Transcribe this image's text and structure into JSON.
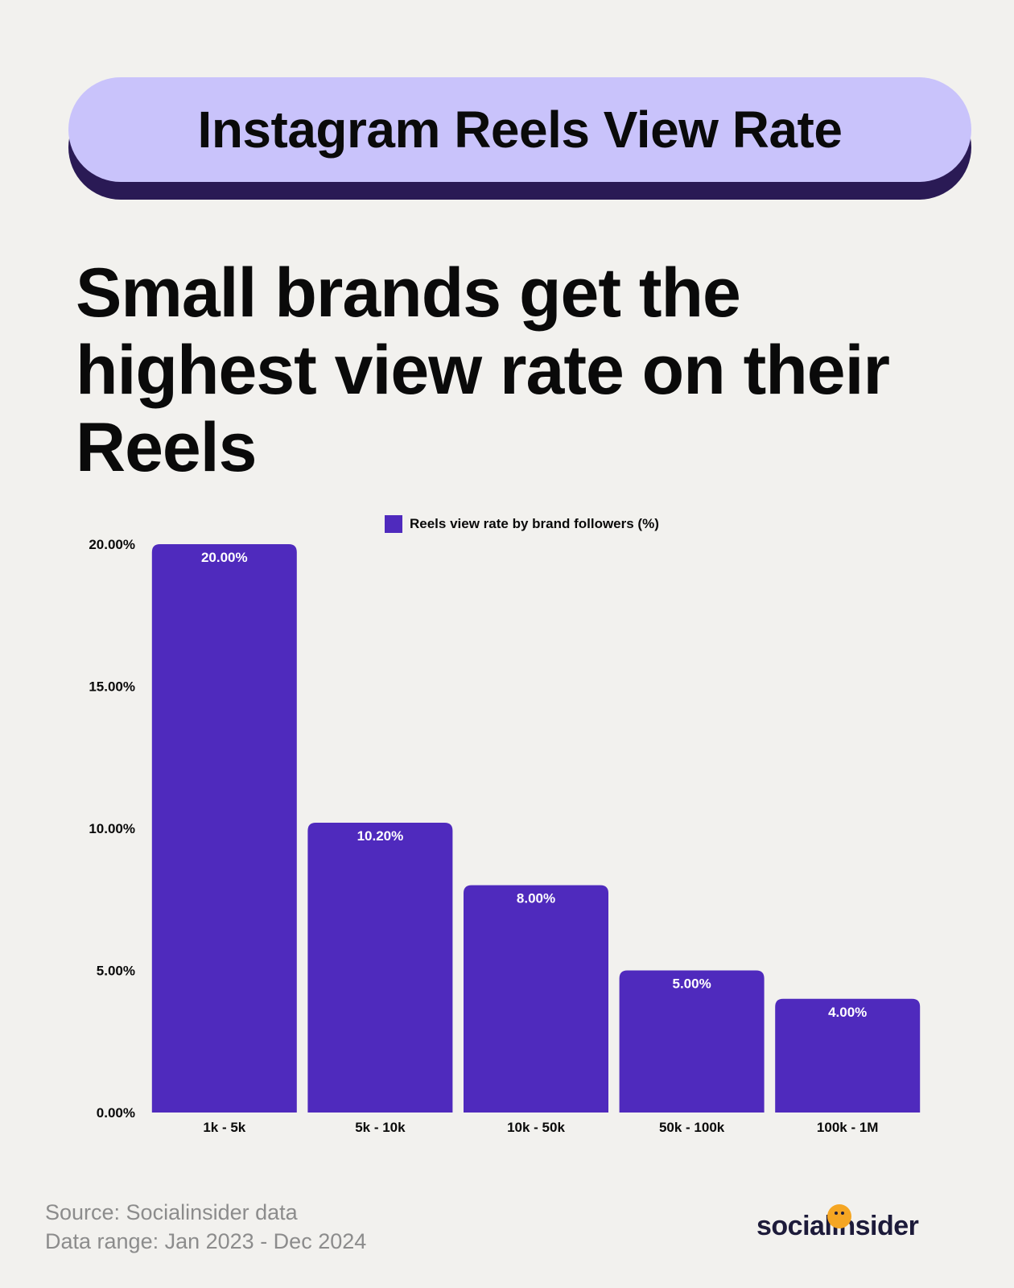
{
  "header": {
    "title": "Instagram Reels View Rate"
  },
  "headline": "Small brands get the highest view rate on their Reels",
  "chart_data": {
    "type": "bar",
    "categories": [
      "1k - 5k",
      "5k - 10k",
      "10k - 50k",
      "50k - 100k",
      "100k - 1M"
    ],
    "series": [
      {
        "name": "Reels view rate by brand followers (%)",
        "values": [
          20.0,
          10.2,
          8.0,
          5.0,
          4.0
        ],
        "labels": [
          "20.00%",
          "10.20%",
          "8.00%",
          "5.00%",
          "4.00%"
        ],
        "color": "#4f2abd"
      }
    ],
    "yticks": [
      "0.00%",
      "5.00%",
      "10.00%",
      "15.00%",
      "20.00%"
    ],
    "ytick_values": [
      0,
      5,
      10,
      15,
      20
    ],
    "ylim": [
      0,
      20
    ],
    "grid": false,
    "legend": "top-center"
  },
  "footer": {
    "source": "Source: Socialinsider data",
    "range": "Data range: Jan 2023 - Dec 2024"
  },
  "brand": {
    "name": "socialinsider",
    "accent": "#f5a623"
  },
  "colors": {
    "background": "#f2f1ee",
    "pill": "#c9c3fb",
    "pill_shadow": "#2a1a55",
    "bar": "#4f2abd"
  }
}
